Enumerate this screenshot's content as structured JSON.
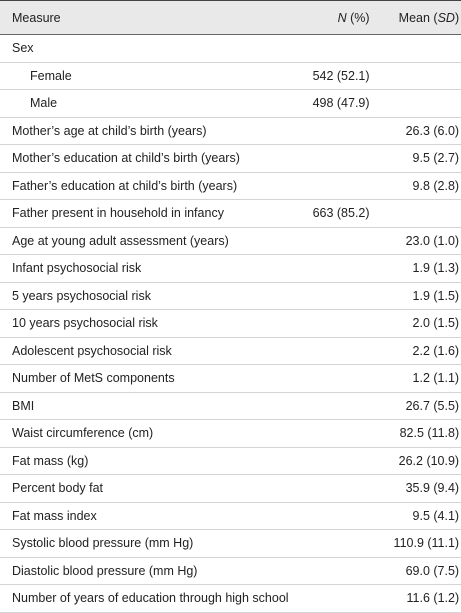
{
  "table": {
    "header": [
      [
        {
          "text": "Measure",
          "italic": false
        }
      ],
      [
        {
          "text": "N",
          "italic": true
        },
        {
          "text": " (%)",
          "italic": false
        }
      ],
      [
        {
          "text": "Mean (",
          "italic": false
        },
        {
          "text": "SD",
          "italic": true
        },
        {
          "text": ")",
          "italic": false
        }
      ]
    ],
    "rows": [
      {
        "cells": [
          "Sex",
          null,
          null
        ],
        "indent": false
      },
      {
        "cells": [
          "Female",
          "542 (52.1)",
          null
        ],
        "indent": true
      },
      {
        "cells": [
          "Male",
          "498 (47.9)",
          null
        ],
        "indent": true
      },
      {
        "cells": [
          "Mother’s age at child’s birth (years)",
          null,
          "26.3 (6.0)"
        ],
        "indent": false
      },
      {
        "cells": [
          "Mother’s education at child’s birth (years)",
          null,
          "9.5 (2.7)"
        ],
        "indent": false
      },
      {
        "cells": [
          "Father’s education at child’s birth (years)",
          null,
          "9.8 (2.8)"
        ],
        "indent": false
      },
      {
        "cells": [
          "Father present in household in infancy",
          "663 (85.2)",
          null
        ],
        "indent": false
      },
      {
        "cells": [
          "Age at young adult assessment (years)",
          null,
          "23.0 (1.0)"
        ],
        "indent": false
      },
      {
        "cells": [
          "Infant psychosocial risk",
          null,
          "1.9 (1.3)"
        ],
        "indent": false
      },
      {
        "cells": [
          "5 years psychosocial risk",
          null,
          "1.9 (1.5)"
        ],
        "indent": false
      },
      {
        "cells": [
          "10 years psychosocial risk",
          null,
          "2.0 (1.5)"
        ],
        "indent": false
      },
      {
        "cells": [
          "Adolescent psychosocial risk",
          null,
          "2.2 (1.6)"
        ],
        "indent": false
      },
      {
        "cells": [
          "Number of MetS components",
          null,
          "1.2 (1.1)"
        ],
        "indent": false
      },
      {
        "cells": [
          "BMI",
          null,
          "26.7 (5.5)"
        ],
        "indent": false
      },
      {
        "cells": [
          "Waist circumference (cm)",
          null,
          "82.5 (11.8)"
        ],
        "indent": false
      },
      {
        "cells": [
          "Fat mass (kg)",
          null,
          "26.2 (10.9)"
        ],
        "indent": false
      },
      {
        "cells": [
          "Percent body fat",
          null,
          "35.9 (9.4)"
        ],
        "indent": false
      },
      {
        "cells": [
          "Fat mass index",
          null,
          "9.5 (4.1)"
        ],
        "indent": false
      },
      {
        "cells": [
          "Systolic blood pressure (mm Hg)",
          null,
          "110.9 (11.1)"
        ],
        "indent": false
      },
      {
        "cells": [
          "Diastolic blood pressure (mm Hg)",
          null,
          "69.0 (7.5)"
        ],
        "indent": false
      },
      {
        "cells": [
          "Number of years of education through high school",
          null,
          "11.6 (1.2)"
        ],
        "indent": false
      }
    ]
  }
}
